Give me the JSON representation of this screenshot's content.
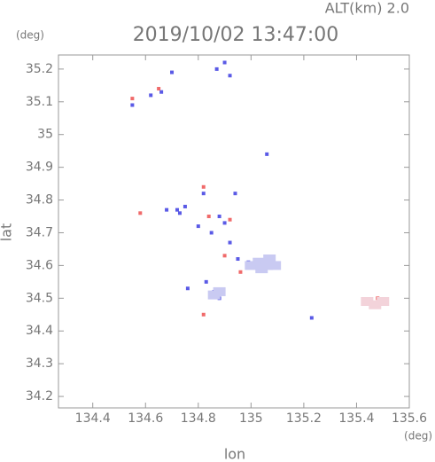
{
  "chart_data": {
    "type": "scatter",
    "title": "2019/10/02 13:47:00",
    "subtitle": "ALT(km) 2.0",
    "y_unit": "(deg)",
    "x_unit": "(deg)",
    "x_label": "lon",
    "y_label": "lat",
    "xlim": [
      134.27,
      135.6
    ],
    "ylim": [
      34.165,
      35.243
    ],
    "xticks": [
      134.4,
      134.6,
      134.8,
      135.0,
      135.2,
      135.4,
      135.6
    ],
    "yticks": [
      34.2,
      34.3,
      34.4,
      34.5,
      34.6,
      34.7,
      34.8,
      34.9,
      35.0,
      35.1,
      35.2
    ],
    "series": [
      {
        "color": "#5a5ae6",
        "x": [
          134.55,
          134.62,
          134.66,
          134.7,
          134.87,
          134.9,
          134.92,
          134.72,
          134.68,
          134.75,
          134.82,
          134.8,
          134.85,
          134.9,
          134.92,
          134.95,
          134.99,
          134.83,
          134.88,
          134.86,
          134.76,
          135.06,
          135.23,
          134.94,
          134.88,
          134.73
        ],
        "y": [
          35.09,
          35.12,
          35.13,
          35.19,
          35.2,
          35.22,
          35.18,
          34.77,
          34.77,
          34.78,
          34.82,
          34.72,
          34.7,
          34.73,
          34.67,
          34.62,
          34.61,
          34.55,
          34.5,
          34.52,
          34.53,
          34.94,
          34.44,
          34.82,
          34.75,
          34.76
        ]
      },
      {
        "color": "#f06a6a",
        "x": [
          134.55,
          134.65,
          134.82,
          134.58,
          134.84,
          134.92,
          134.96,
          134.82,
          135.45,
          135.48,
          134.9
        ],
        "y": [
          35.11,
          35.14,
          34.84,
          34.76,
          34.75,
          34.74,
          34.58,
          34.45,
          34.49,
          34.5,
          34.63
        ]
      },
      {
        "color": "#c9caf2",
        "x": [
          135.0,
          135.03,
          135.06,
          135.09,
          135.04,
          135.07,
          134.88,
          134.86
        ],
        "y": [
          34.6,
          34.61,
          34.6,
          34.6,
          34.59,
          34.62,
          34.52,
          34.51
        ]
      },
      {
        "color": "#f3d3da",
        "x": [
          135.44,
          135.47,
          135.5
        ],
        "y": [
          34.49,
          34.48,
          34.49
        ]
      }
    ]
  }
}
